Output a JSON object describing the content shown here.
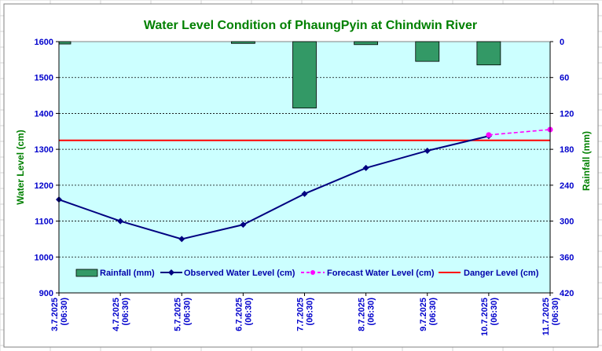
{
  "chart_data": {
    "type": "bar+line",
    "title": "Water Level Condition of PhaungPyin at Chindwin River",
    "ylabel_left": "Water Level (cm)",
    "ylabel_right": "Rainfall (mm)",
    "categories": [
      "3.7.2025",
      "4.7.2025",
      "5.7.2025",
      "6.7.2025",
      "7.7.2025",
      "8.7.2025",
      "9.7.2025",
      "10.7.2025",
      "11.7.2025"
    ],
    "category_times": [
      "(06:30)",
      "(06:30)",
      "(06:30)",
      "(06:30)",
      "(06:30)",
      "(06:30)",
      "(06:30)",
      "(06:30)",
      "(06:30)"
    ],
    "ylim_left": [
      900,
      1600
    ],
    "yticks_left": [
      900,
      1000,
      1100,
      1200,
      1300,
      1400,
      1500,
      1600
    ],
    "ylim_right": [
      0,
      420
    ],
    "right_axis_inverted": true,
    "yticks_right": [
      0,
      60,
      120,
      180,
      240,
      300,
      360,
      420
    ],
    "series": [
      {
        "name": "Rainfall (mm)",
        "type": "bar",
        "axis": "right",
        "color": "#339966",
        "values": [
          4,
          null,
          null,
          3,
          111,
          5,
          33,
          39,
          null
        ]
      },
      {
        "name": "Observed Water Level (cm)",
        "type": "line",
        "axis": "left",
        "color": "#000080",
        "values": [
          1160,
          1100,
          1050,
          1090,
          1176,
          1248,
          1296,
          1337,
          null
        ]
      },
      {
        "name": "Forecast Water Level (cm)",
        "type": "line-dashed",
        "axis": "left",
        "color": "#ff00ff",
        "values": [
          null,
          null,
          null,
          null,
          null,
          null,
          null,
          1340,
          1355
        ]
      },
      {
        "name": "Danger Level (cm)",
        "type": "hline",
        "axis": "left",
        "color": "#ff0000",
        "value": 1325
      }
    ],
    "legend_position": "bottom-inside",
    "grid": true
  }
}
